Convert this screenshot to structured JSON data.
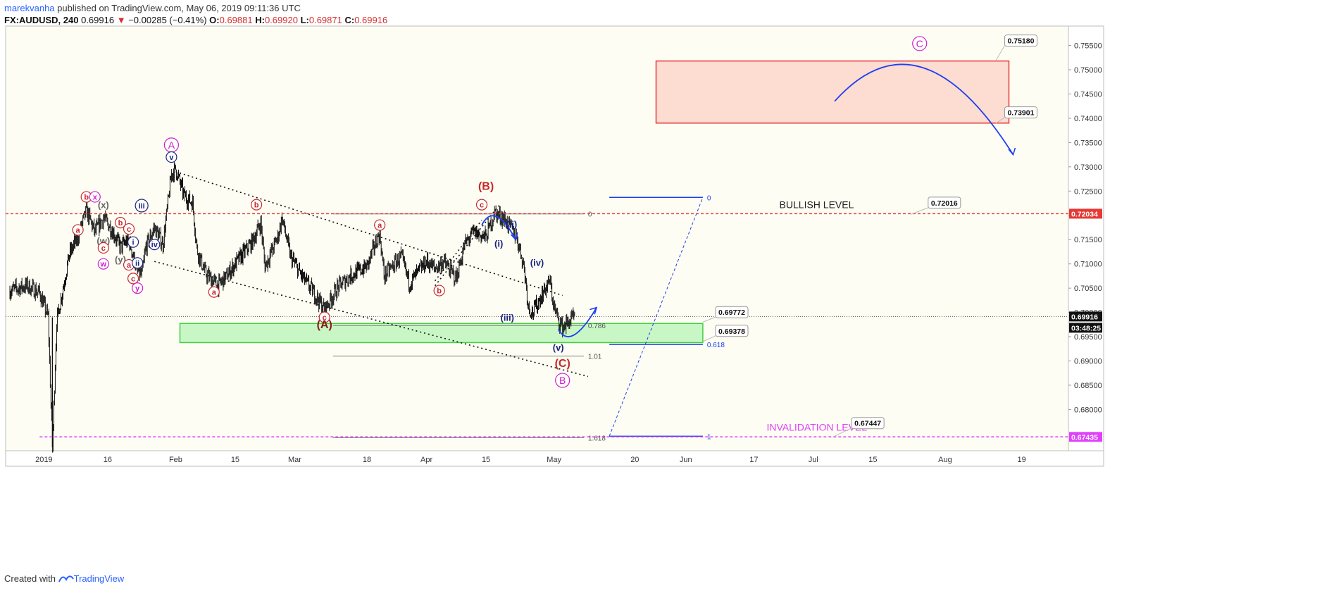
{
  "header": {
    "author": "marekvanha",
    "published": "published on TradingView.com, May 06, 2019 09:11:36 UTC",
    "symbol": "FX:AUDUSD, 240",
    "last": "0.69916",
    "change_arrow": "▼",
    "change": "−0.00285 (−0.41%)",
    "ohlc": {
      "o_label": "O:",
      "o": "0.69881",
      "h_label": "H:",
      "h": "0.69920",
      "l_label": "L:",
      "l": "0.69871",
      "c_label": "C:",
      "c": "0.69916"
    }
  },
  "footer": {
    "created_with": "Created with",
    "brand": "TradingView",
    "logo_icon": "tradingview-logo-icon"
  },
  "colors": {
    "background": "#fdfdf4",
    "candle": "#111111",
    "wave_red": "#c62828",
    "wave_blue": "#1a237e",
    "wave_magenta": "#cc1fcc",
    "bullish_line": "#e53935",
    "invalidation_line": "#e040fb",
    "target_zone_fill": "#fddcd2",
    "target_zone_border": "#e53935",
    "support_zone_fill": "#c8f7c5",
    "support_zone_border": "#3fd13f",
    "fib_line": "#7f7f7f",
    "projection": "#1e3ff0"
  },
  "chart_data": {
    "type": "candlestick",
    "symbol": "FX:AUDUSD",
    "timeframe": "240",
    "x_range": [
      "2018-12-23",
      "2019-08-30"
    ],
    "ylim": [
      0.6715,
      0.759
    ],
    "y_ticks": [
      "0.75500",
      "0.75000",
      "0.74500",
      "0.74000",
      "0.73500",
      "0.73000",
      "0.72500",
      "0.72000",
      "0.71500",
      "0.71000",
      "0.70500",
      "0.70000",
      "0.69500",
      "0.69000",
      "0.68500",
      "0.68000"
    ],
    "y_tick_values": [
      0.755,
      0.75,
      0.745,
      0.74,
      0.735,
      0.73,
      0.725,
      0.72,
      0.715,
      0.71,
      0.705,
      0.7,
      0.695,
      0.69,
      0.685,
      0.68
    ],
    "x_ticks": [
      {
        "label": "2019",
        "date": "2019-01-01"
      },
      {
        "label": "16",
        "date": "2019-01-16"
      },
      {
        "label": "Feb",
        "date": "2019-02-01"
      },
      {
        "label": "15",
        "date": "2019-02-15"
      },
      {
        "label": "Mar",
        "date": "2019-03-01"
      },
      {
        "label": "18",
        "date": "2019-03-18"
      },
      {
        "label": "Apr",
        "date": "2019-04-01"
      },
      {
        "label": "15",
        "date": "2019-04-15"
      },
      {
        "label": "May",
        "date": "2019-05-01"
      },
      {
        "label": "20",
        "date": "2019-05-20"
      },
      {
        "label": "Jun",
        "date": "2019-06-01"
      },
      {
        "label": "17",
        "date": "2019-06-17"
      },
      {
        "label": "Jul",
        "date": "2019-07-01"
      },
      {
        "label": "15",
        "date": "2019-07-15"
      },
      {
        "label": "Aug",
        "date": "2019-08-01"
      },
      {
        "label": "19",
        "date": "2019-08-19"
      }
    ],
    "price_path": [
      [
        "2018-12-24",
        0.7045
      ],
      [
        "2018-12-28",
        0.7055
      ],
      [
        "2018-12-31",
        0.704
      ],
      [
        "2019-01-02",
        0.699
      ],
      [
        "2019-01-03",
        0.672
      ],
      [
        "2019-01-04",
        0.698
      ],
      [
        "2019-01-07",
        0.712
      ],
      [
        "2019-01-09",
        0.7155
      ],
      [
        "2019-01-11",
        0.721
      ],
      [
        "2019-01-13",
        0.7165
      ],
      [
        "2019-01-15",
        0.7195
      ],
      [
        "2019-01-17",
        0.717
      ],
      [
        "2019-01-19",
        0.7135
      ],
      [
        "2019-01-21",
        0.715
      ],
      [
        "2019-01-23",
        0.7085
      ],
      [
        "2019-01-24",
        0.7075
      ],
      [
        "2019-01-25",
        0.7135
      ],
      [
        "2019-01-27",
        0.7175
      ],
      [
        "2019-01-29",
        0.714
      ],
      [
        "2019-01-31",
        0.7285
      ],
      [
        "2019-02-01",
        0.7295
      ],
      [
        "2019-02-03",
        0.724
      ],
      [
        "2019-02-05",
        0.7225
      ],
      [
        "2019-02-06",
        0.713
      ],
      [
        "2019-02-08",
        0.708
      ],
      [
        "2019-02-11",
        0.7055
      ],
      [
        "2019-02-13",
        0.7075
      ],
      [
        "2019-02-15",
        0.71
      ],
      [
        "2019-02-19",
        0.7145
      ],
      [
        "2019-02-21",
        0.7185
      ],
      [
        "2019-02-22",
        0.7095
      ],
      [
        "2019-02-25",
        0.7155
      ],
      [
        "2019-02-26",
        0.7195
      ],
      [
        "2019-02-28",
        0.7115
      ],
      [
        "2019-03-03",
        0.707
      ],
      [
        "2019-03-06",
        0.7035
      ],
      [
        "2019-03-08",
        0.7005
      ],
      [
        "2019-03-11",
        0.705
      ],
      [
        "2019-03-14",
        0.7075
      ],
      [
        "2019-03-18",
        0.7095
      ],
      [
        "2019-03-21",
        0.7165
      ],
      [
        "2019-03-22",
        0.7075
      ],
      [
        "2019-03-26",
        0.7115
      ],
      [
        "2019-03-28",
        0.706
      ],
      [
        "2019-04-01",
        0.7105
      ],
      [
        "2019-04-03",
        0.709
      ],
      [
        "2019-04-05",
        0.7105
      ],
      [
        "2019-04-08",
        0.707
      ],
      [
        "2019-04-10",
        0.714
      ],
      [
        "2019-04-12",
        0.7165
      ],
      [
        "2019-04-15",
        0.7155
      ],
      [
        "2019-04-17",
        0.7205
      ],
      [
        "2019-04-19",
        0.7195
      ],
      [
        "2019-04-22",
        0.716
      ],
      [
        "2019-04-23",
        0.713
      ],
      [
        "2019-04-24",
        0.709
      ],
      [
        "2019-04-25",
        0.701
      ],
      [
        "2019-04-26",
        0.7
      ],
      [
        "2019-04-29",
        0.705
      ],
      [
        "2019-04-30",
        0.7065
      ],
      [
        "2019-05-01",
        0.701
      ],
      [
        "2019-05-02",
        0.6985
      ],
      [
        "2019-05-03",
        0.697
      ],
      [
        "2019-05-06",
        0.6992
      ]
    ],
    "levels": [
      {
        "name": "BULLISH LEVEL",
        "value": 0.72034,
        "label": "0.72034",
        "style": "dashed-red",
        "callout": "0.72016"
      },
      {
        "name": "INVALIDATION LEVEL",
        "value": 0.67435,
        "label": "0.67435",
        "style": "dashed-magenta",
        "callout": "0.67447"
      },
      {
        "name": "last",
        "value": 0.69916,
        "label": "0.69916",
        "timer": "03:48:25"
      }
    ],
    "zones": [
      {
        "name": "target",
        "top": 0.7518,
        "bottom": 0.73901,
        "x": [
          "2019-05-25",
          "2019-08-16"
        ],
        "labels": [
          "0.75180",
          "0.73901"
        ]
      },
      {
        "name": "support",
        "top": 0.69772,
        "bottom": 0.69378,
        "x": [
          "2019-02-02",
          "2019-06-05"
        ],
        "labels": [
          "0.69772",
          "0.69378"
        ]
      }
    ],
    "fib_retracement": {
      "levels": [
        {
          "label": "0",
          "value": 0.7203
        },
        {
          "label": "0.786",
          "value": 0.6973
        },
        {
          "label": "1.01",
          "value": 0.691
        },
        {
          "label": "1.618",
          "value": 0.6742
        }
      ]
    },
    "fib_extension": {
      "levels": [
        {
          "label": "0",
          "value": 0.7237
        },
        {
          "label": "0.618",
          "value": 0.6934
        },
        {
          "label": "1",
          "value": 0.6745
        }
      ]
    },
    "wave_labels": [
      {
        "text": "A",
        "date": "2019-01-31",
        "value": 0.7345,
        "color": "magenta",
        "circle": true
      },
      {
        "text": "v",
        "date": "2019-01-31",
        "value": 0.732,
        "color": "blue",
        "circle": true
      },
      {
        "text": "b",
        "date": "2019-01-11",
        "value": 0.7238,
        "color": "red",
        "circle": true
      },
      {
        "text": "x",
        "date": "2019-01-13",
        "value": 0.7238,
        "color": "magenta",
        "circle": true
      },
      {
        "text": "(x)",
        "date": "2019-01-15",
        "value": 0.7222,
        "color": "gray",
        "circle": false
      },
      {
        "text": "iii",
        "date": "2019-01-24",
        "value": 0.722,
        "color": "blue",
        "circle": true
      },
      {
        "text": "a",
        "date": "2019-01-09",
        "value": 0.717,
        "color": "red",
        "circle": true
      },
      {
        "text": "b",
        "date": "2019-01-19",
        "value": 0.7185,
        "color": "red",
        "circle": true
      },
      {
        "text": "c",
        "date": "2019-01-21",
        "value": 0.7172,
        "color": "red",
        "circle": true
      },
      {
        "text": "(w)",
        "date": "2019-01-15",
        "value": 0.7148,
        "color": "gray",
        "circle": false
      },
      {
        "text": "i",
        "date": "2019-01-22",
        "value": 0.7145,
        "color": "blue",
        "circle": true
      },
      {
        "text": "iv",
        "date": "2019-01-27",
        "value": 0.714,
        "color": "blue",
        "circle": true
      },
      {
        "text": "c",
        "date": "2019-01-15",
        "value": 0.7133,
        "color": "red",
        "circle": true
      },
      {
        "text": "(y)",
        "date": "2019-01-19",
        "value": 0.711,
        "color": "gray",
        "circle": false
      },
      {
        "text": "w",
        "date": "2019-01-15",
        "value": 0.71,
        "color": "magenta",
        "circle": true
      },
      {
        "text": "a",
        "date": "2019-01-21",
        "value": 0.7098,
        "color": "red",
        "circle": true
      },
      {
        "text": "ii",
        "date": "2019-01-23",
        "value": 0.7102,
        "color": "blue",
        "circle": true
      },
      {
        "text": "c",
        "date": "2019-01-22",
        "value": 0.707,
        "color": "red",
        "circle": true
      },
      {
        "text": "y",
        "date": "2019-01-23",
        "value": 0.705,
        "color": "magenta",
        "circle": true
      },
      {
        "text": "a",
        "date": "2019-02-10",
        "value": 0.7042,
        "color": "red",
        "circle": true
      },
      {
        "text": "b",
        "date": "2019-02-20",
        "value": 0.7222,
        "color": "red",
        "circle": true
      },
      {
        "text": "c",
        "date": "2019-03-08",
        "value": 0.699,
        "color": "red",
        "circle": true
      },
      {
        "text": "(A)",
        "date": "2019-03-08",
        "value": 0.6975,
        "color": "darkred",
        "circle": false
      },
      {
        "text": "a",
        "date": "2019-03-21",
        "value": 0.718,
        "color": "red",
        "circle": true
      },
      {
        "text": "b",
        "date": "2019-04-04",
        "value": 0.7045,
        "color": "red",
        "circle": true
      },
      {
        "text": "(B)",
        "date": "2019-04-15",
        "value": 0.726,
        "color": "red",
        "circle": false
      },
      {
        "text": "c",
        "date": "2019-04-14",
        "value": 0.7222,
        "color": "red",
        "circle": true
      },
      {
        "text": "(ii)",
        "date": "2019-04-21",
        "value": 0.7182,
        "color": "blue",
        "circle": false
      },
      {
        "text": "(i)",
        "date": "2019-04-18",
        "value": 0.7142,
        "color": "blue",
        "circle": false
      },
      {
        "text": "(iv)",
        "date": "2019-04-27",
        "value": 0.7103,
        "color": "blue",
        "circle": false
      },
      {
        "text": "(iii)",
        "date": "2019-04-20",
        "value": 0.699,
        "color": "blue",
        "circle": false
      },
      {
        "text": "(v)",
        "date": "2019-05-02",
        "value": 0.6928,
        "color": "blue",
        "circle": false
      },
      {
        "text": "(C)",
        "date": "2019-05-03",
        "value": 0.6895,
        "color": "red",
        "circle": false
      },
      {
        "text": "B",
        "date": "2019-05-03",
        "value": 0.686,
        "color": "magenta",
        "circle": true
      },
      {
        "text": "C",
        "date": "2019-07-26",
        "value": 0.7554,
        "color": "magenta",
        "circle": true
      }
    ]
  },
  "annotations": {
    "bullish_label": "BULLISH LEVEL",
    "invalidation_label": "INVALIDATION LEVEL"
  }
}
